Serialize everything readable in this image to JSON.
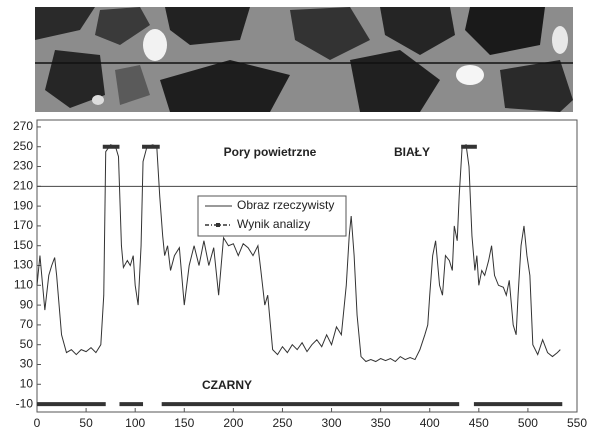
{
  "chart_data": {
    "type": "line",
    "annotations": [
      "Pory powietrzne",
      "BIAŁY",
      "CZARNY"
    ],
    "xlim": [
      0,
      550
    ],
    "xticks": [
      0,
      50,
      100,
      150,
      200,
      250,
      300,
      350,
      400,
      450,
      500,
      550
    ],
    "ylim": [
      -18,
      277
    ],
    "yticks": [
      -10,
      10,
      30,
      50,
      70,
      90,
      110,
      130,
      150,
      170,
      190,
      210,
      230,
      250,
      270
    ],
    "threshold": 210,
    "series": [
      {
        "name": "Obraz rzeczywisty",
        "color": "#333333",
        "x": [
          0,
          3,
          8,
          12,
          15,
          18,
          20,
          25,
          30,
          35,
          40,
          45,
          50,
          55,
          60,
          65,
          68,
          70,
          75,
          80,
          83,
          86,
          88,
          92,
          95,
          98,
          100,
          103,
          106,
          108,
          112,
          118,
          122,
          125,
          128,
          130,
          133,
          136,
          140,
          145,
          150,
          155,
          160,
          165,
          170,
          175,
          180,
          185,
          190,
          195,
          200,
          205,
          210,
          215,
          220,
          225,
          228,
          232,
          235,
          240,
          245,
          250,
          255,
          260,
          265,
          270,
          275,
          280,
          285,
          290,
          295,
          300,
          305,
          310,
          315,
          318,
          320,
          323,
          326,
          330,
          335,
          340,
          345,
          350,
          355,
          360,
          365,
          370,
          375,
          380,
          385,
          390,
          395,
          398,
          400,
          403,
          406,
          410,
          413,
          416,
          420,
          423,
          425,
          428,
          430,
          433,
          437,
          440,
          443,
          446,
          448,
          450,
          453,
          456,
          460,
          463,
          466,
          470,
          475,
          478,
          481,
          485,
          488,
          490,
          493,
          496,
          499,
          502,
          505,
          510,
          515,
          520,
          525,
          530,
          533
        ],
        "values": [
          110,
          140,
          85,
          120,
          130,
          138,
          120,
          60,
          42,
          45,
          40,
          45,
          43,
          47,
          42,
          50,
          100,
          245,
          252,
          250,
          240,
          150,
          128,
          135,
          130,
          140,
          110,
          90,
          150,
          235,
          250,
          252,
          250,
          200,
          160,
          140,
          150,
          125,
          140,
          148,
          90,
          130,
          150,
          130,
          155,
          130,
          148,
          100,
          158,
          150,
          152,
          140,
          152,
          148,
          140,
          150,
          125,
          90,
          100,
          45,
          40,
          48,
          42,
          50,
          45,
          52,
          43,
          50,
          55,
          48,
          60,
          50,
          68,
          60,
          110,
          160,
          180,
          140,
          80,
          38,
          33,
          35,
          33,
          36,
          34,
          36,
          33,
          38,
          35,
          37,
          35,
          45,
          60,
          70,
          100,
          140,
          155,
          110,
          100,
          140,
          135,
          125,
          170,
          155,
          200,
          250,
          252,
          230,
          160,
          125,
          140,
          110,
          125,
          120,
          135,
          150,
          120,
          110,
          108,
          100,
          115,
          70,
          60,
          100,
          150,
          170,
          140,
          120,
          50,
          40,
          55,
          42,
          38,
          42,
          45
        ]
      },
      {
        "name": "Wynik analizy",
        "color": "#333333",
        "x": [
          67,
          84,
          95,
          107,
          125,
          280,
          432,
          448
        ],
        "values": [
          250,
          250,
          null,
          250,
          250,
          null,
          250,
          250
        ]
      },
      {
        "name": null,
        "color": "#333333",
        "x": [
          0,
          70,
          77,
          84,
          108,
          118,
          127,
          430,
          438,
          445,
          535
        ],
        "values": [
          -10,
          -10,
          null,
          -10,
          -10,
          null,
          -10,
          -10,
          null,
          -10,
          -10
        ]
      }
    ]
  }
}
